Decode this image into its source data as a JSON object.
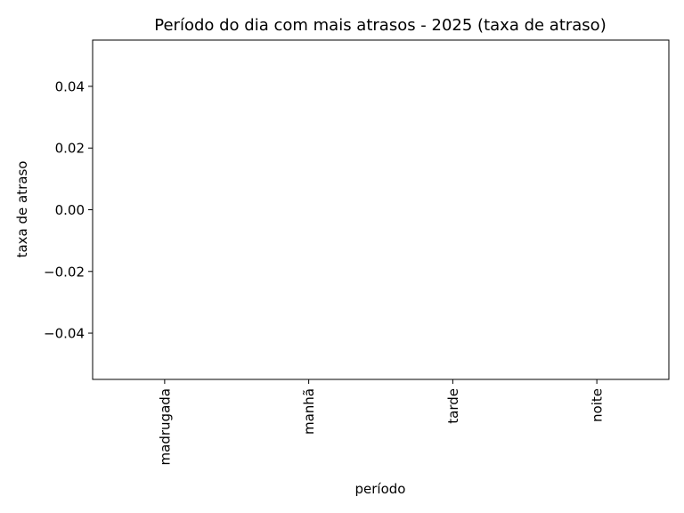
{
  "chart_data": {
    "type": "bar",
    "title": "Período do dia com mais atrasos - 2025 (taxa de atraso)",
    "xlabel": "período",
    "ylabel": "taxa de atraso",
    "categories": [
      "madrugada",
      "manhã",
      "tarde",
      "noite"
    ],
    "values": [
      0,
      0,
      0,
      0
    ],
    "ylim": [
      -0.055,
      0.055
    ],
    "yticks": [
      0.04,
      0.02,
      0.0,
      -0.02,
      -0.04
    ],
    "ytick_labels": [
      "0.04",
      "0.02",
      "0.00",
      "−0.02",
      "−0.04"
    ],
    "grid": false,
    "legend": "none"
  }
}
